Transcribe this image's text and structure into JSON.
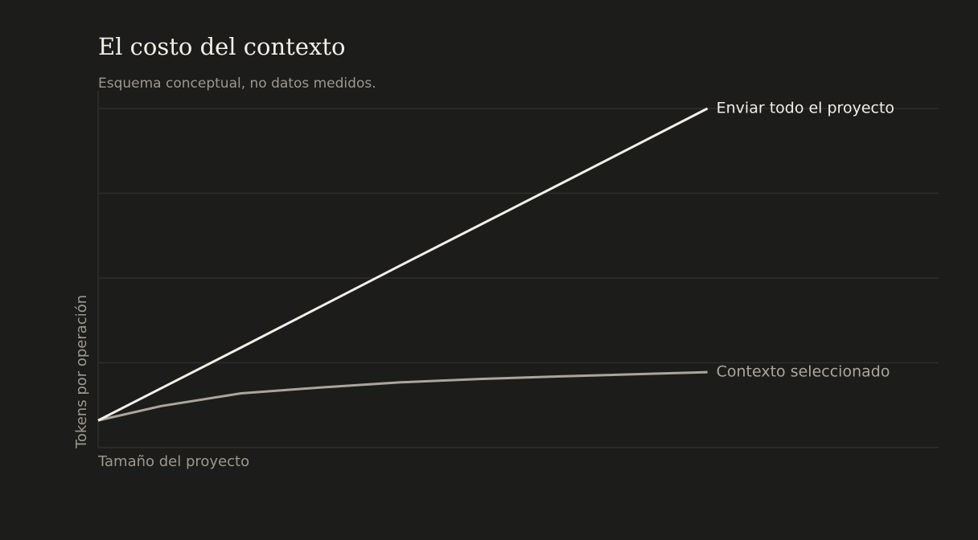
{
  "chart_data": {
    "type": "line",
    "title": "El costo del contexto",
    "subtitle": "Esquema conceptual, no datos medidos.",
    "x_label": "Tamaño del proyecto",
    "y_label": "Tokens por operación",
    "x": [
      0,
      7.5,
      17,
      26.6,
      36,
      45.7,
      55,
      72.5
    ],
    "xlim": [
      0,
      100
    ],
    "ylim": [
      0,
      4
    ],
    "yticks": [
      0,
      1,
      2,
      3,
      4
    ],
    "grid": true,
    "series": [
      {
        "name": "Enviar todo el proyecto",
        "color": "#f2efe8",
        "values": [
          0.32,
          0.7,
          1.18,
          1.67,
          2.15,
          2.64,
          3.11,
          4.0
        ]
      },
      {
        "name": "Contexto seleccionado",
        "color": "#aba699",
        "values": [
          0.32,
          0.49,
          0.64,
          0.71,
          0.77,
          0.81,
          0.84,
          0.89
        ]
      }
    ]
  }
}
